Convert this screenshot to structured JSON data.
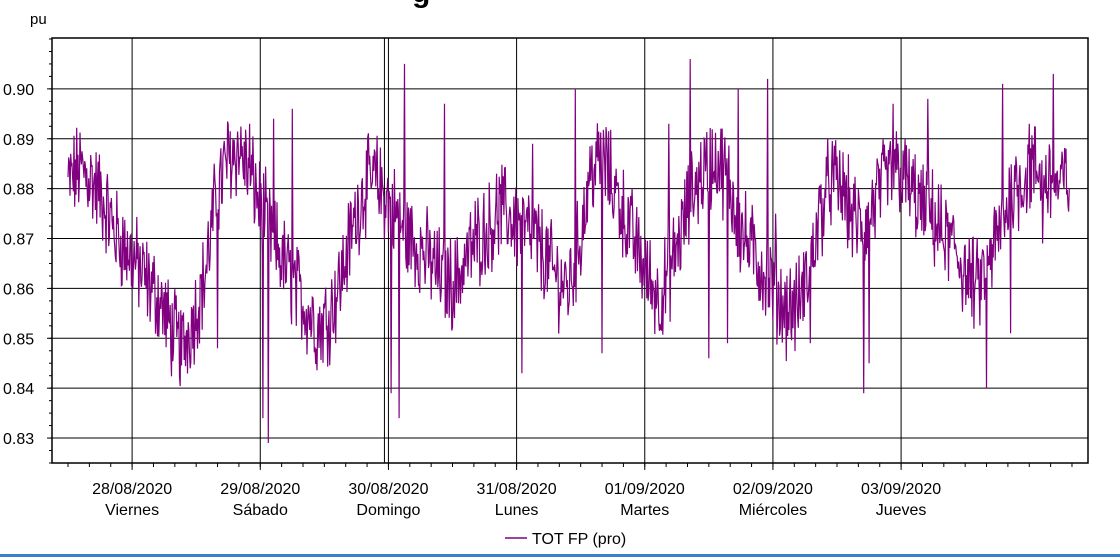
{
  "chart_data": {
    "type": "line",
    "title_fragment": "g",
    "ylabel": "pu",
    "ylim": [
      0.825,
      0.9102
    ],
    "yticks": [
      0.83,
      0.84,
      0.85,
      0.86,
      0.87,
      0.88,
      0.89,
      0.9
    ],
    "ytick_labels": [
      "0.83",
      "0.84",
      "0.85",
      "0.86",
      "0.87",
      "0.88",
      "0.89",
      "0.90"
    ],
    "x_range_days": [
      "2020-08-27T09:00",
      "2020-09-04T11:00"
    ],
    "x_major_ticks": [
      {
        "date": "28/08/2020",
        "day": "Viernes"
      },
      {
        "date": "29/08/2020",
        "day": "Sábado"
      },
      {
        "date": "30/08/2020",
        "day": "Domingo"
      },
      {
        "date": "31/08/2020",
        "day": "Lunes"
      },
      {
        "date": "01/09/2020",
        "day": "Martes"
      },
      {
        "date": "02/09/2020",
        "day": "Miércoles"
      },
      {
        "date": "03/09/2020",
        "day": "Jueves"
      }
    ],
    "grid": true,
    "legend_position": "bottom-center",
    "series": [
      {
        "name": "TOT FP (pro)",
        "color": "#800080",
        "x_start": "2020-08-27T12:00",
        "x_end": "2020-09-04T07:30",
        "baseline": [
          0.881,
          0.884,
          0.882,
          0.878,
          0.872,
          0.868,
          0.865,
          0.861,
          0.858,
          0.852,
          0.848,
          0.854,
          0.862,
          0.878,
          0.886,
          0.888,
          0.883,
          0.876,
          0.87,
          0.865,
          0.86,
          0.856,
          0.852,
          0.855,
          0.862,
          0.872,
          0.88,
          0.882,
          0.878,
          0.874,
          0.87,
          0.868,
          0.865,
          0.862,
          0.861,
          0.866,
          0.87,
          0.872,
          0.876,
          0.874,
          0.872,
          0.87,
          0.866,
          0.862,
          0.86,
          0.87,
          0.884,
          0.886,
          0.88,
          0.874,
          0.868,
          0.862,
          0.858,
          0.864,
          0.872,
          0.88,
          0.884,
          0.886,
          0.882,
          0.872,
          0.868,
          0.864,
          0.86,
          0.856,
          0.856,
          0.862,
          0.874,
          0.882,
          0.88,
          0.874,
          0.872,
          0.878,
          0.882,
          0.884,
          0.88,
          0.876,
          0.874,
          0.87,
          0.868,
          0.862,
          0.86,
          0.866,
          0.872,
          0.88,
          0.882,
          0.884,
          0.882,
          0.88,
          0.882
        ],
        "spikes": [
          {
            "x": "2020-08-28T22:00",
            "y": 0.893
          },
          {
            "x": "2020-08-29T01:30",
            "y": 0.829
          },
          {
            "x": "2020-08-29T00:30",
            "y": 0.834
          },
          {
            "x": "2020-08-28T16:00",
            "y": 0.848
          },
          {
            "x": "2020-08-29T02:30",
            "y": 0.894
          },
          {
            "x": "2020-08-29T06:00",
            "y": 0.896
          },
          {
            "x": "2020-08-30T03:00",
            "y": 0.905
          },
          {
            "x": "2020-08-30T02:00",
            "y": 0.834
          },
          {
            "x": "2020-08-30T00:30",
            "y": 0.839
          },
          {
            "x": "2020-08-30T10:30",
            "y": 0.897
          },
          {
            "x": "2020-08-31T01:00",
            "y": 0.843
          },
          {
            "x": "2020-08-31T03:00",
            "y": 0.889
          },
          {
            "x": "2020-08-31T11:00",
            "y": 0.9
          },
          {
            "x": "2020-08-31T16:00",
            "y": 0.847
          },
          {
            "x": "2020-08-31T17:00",
            "y": 0.886
          },
          {
            "x": "2020-09-01T04:30",
            "y": 0.893
          },
          {
            "x": "2020-09-01T08:30",
            "y": 0.906
          },
          {
            "x": "2020-09-01T12:00",
            "y": 0.846
          },
          {
            "x": "2020-09-01T15:30",
            "y": 0.849
          },
          {
            "x": "2020-09-01T17:30",
            "y": 0.9
          },
          {
            "x": "2020-09-01T23:00",
            "y": 0.902
          },
          {
            "x": "2020-09-02T00:30",
            "y": 0.875
          },
          {
            "x": "2020-09-02T07:00",
            "y": 0.849
          },
          {
            "x": "2020-09-02T17:00",
            "y": 0.839
          },
          {
            "x": "2020-09-02T18:00",
            "y": 0.845
          },
          {
            "x": "2020-09-02T22:30",
            "y": 0.897
          },
          {
            "x": "2020-09-03T05:00",
            "y": 0.898
          },
          {
            "x": "2020-09-03T16:00",
            "y": 0.84
          },
          {
            "x": "2020-09-03T19:00",
            "y": 0.901
          },
          {
            "x": "2020-09-03T20:30",
            "y": 0.851
          },
          {
            "x": "2020-09-04T00:00",
            "y": 0.893
          },
          {
            "x": "2020-09-04T04:30",
            "y": 0.903
          },
          {
            "x": "2020-09-04T02:30",
            "y": 0.869
          }
        ]
      }
    ]
  }
}
